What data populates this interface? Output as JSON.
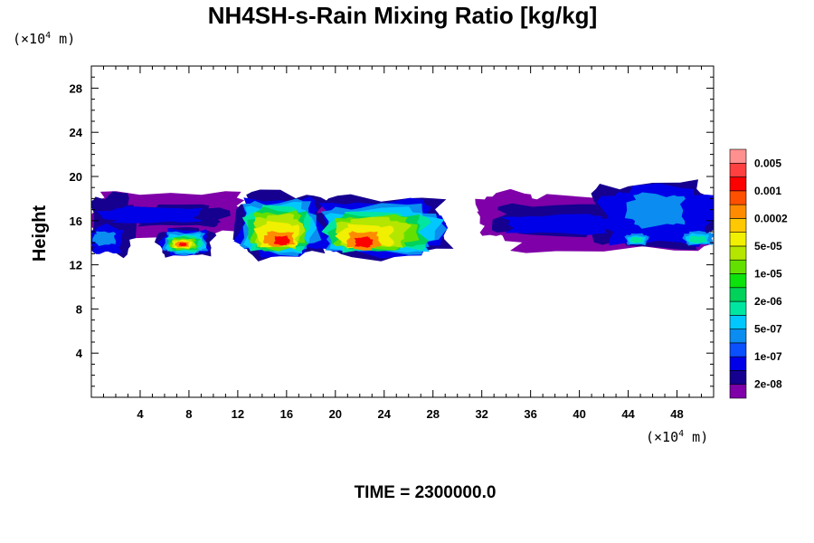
{
  "chart_data": {
    "type": "heatmap",
    "title": "NH4SH-s-Rain Mixing Ratio [kg/kg]",
    "ylabel": "Height",
    "y_unit": {
      "prefix": "(×10",
      "exp": "4",
      "suffix": " m)"
    },
    "x_unit": {
      "prefix": "(×10",
      "exp": "4",
      "suffix": " m)"
    },
    "xlim": [
      0,
      51
    ],
    "ylim": [
      0,
      30
    ],
    "x_ticks": [
      4,
      8,
      12,
      16,
      20,
      24,
      28,
      32,
      36,
      40,
      44,
      48
    ],
    "y_ticks": [
      4,
      8,
      12,
      16,
      20,
      24,
      28
    ],
    "time_label": "TIME = 2300000.0",
    "colorbar": {
      "colors": [
        "#7f00a8",
        "#16008f",
        "#0000e8",
        "#0a50ff",
        "#0a8cf0",
        "#00c8ff",
        "#00e6a0",
        "#00d25a",
        "#0ce20c",
        "#64e000",
        "#b4e600",
        "#f0f000",
        "#ffc800",
        "#ff8c00",
        "#ff5000",
        "#ff0000",
        "#ff4040",
        "#ff9090"
      ],
      "labels": [
        "2e-08",
        "1e-07",
        "5e-07",
        "2e-06",
        "1e-05",
        "5e-05",
        "0.0002",
        "0.001",
        "0.005"
      ]
    },
    "field_levels": [
      "purple",
      "navy",
      "blue",
      "lightblue",
      "cyan",
      "teal",
      "green",
      "lime",
      "yellowgreen",
      "yellow",
      "orange",
      "red"
    ],
    "layers": [
      {
        "level": 0,
        "color": "#7f00a8",
        "blobs": [
          {
            "x": [
              0,
              13
            ],
            "y": [
              14.6,
              18.6
            ]
          },
          {
            "x": [
              14,
              27.5
            ],
            "y": [
              14.6,
              17.6
            ]
          },
          {
            "x": [
              28,
              29
            ],
            "y": [
              15.2,
              16.0
            ]
          },
          {
            "x": [
              31.7,
              37
            ],
            "y": [
              14.6,
              18.5
            ]
          },
          {
            "x": [
              33,
              51
            ],
            "y": [
              13.2,
              18.0
            ]
          }
        ]
      },
      {
        "level": 1,
        "color": "#16008f",
        "blobs": [
          {
            "x": [
              0,
              3.5
            ],
            "y": [
              13.0,
              18.4
            ]
          },
          {
            "x": [
              3.5,
              11
            ],
            "y": [
              15.5,
              17.4
            ]
          },
          {
            "x": [
              5.5,
              10
            ],
            "y": [
              12.8,
              15.3
            ]
          },
          {
            "x": [
              12,
              19
            ],
            "y": [
              12.8,
              18.6
            ]
          },
          {
            "x": [
              18.5,
              29
            ],
            "y": [
              12.8,
              18.2
            ]
          },
          {
            "x": [
              33,
              43
            ],
            "y": [
              14.7,
              17.5
            ]
          },
          {
            "x": [
              41,
              51
            ],
            "y": [
              13.6,
              19.4
            ]
          }
        ]
      },
      {
        "level": 2,
        "color": "#0000e8",
        "blobs": [
          {
            "x": [
              0,
              2.5
            ],
            "y": [
              13.0,
              15.5
            ]
          },
          {
            "x": [
              1,
              9
            ],
            "y": [
              15.8,
              17.2
            ]
          },
          {
            "x": [
              5.8,
              9.6
            ],
            "y": [
              12.9,
              15.2
            ]
          },
          {
            "x": [
              12.2,
              18.8
            ],
            "y": [
              12.9,
              18.0
            ]
          },
          {
            "x": [
              18.8,
              28.6
            ],
            "y": [
              12.9,
              17.8
            ]
          },
          {
            "x": [
              34,
              43
            ],
            "y": [
              14.8,
              16.5
            ]
          },
          {
            "x": [
              42,
              51
            ],
            "y": [
              13.8,
              19.0
            ]
          }
        ]
      },
      {
        "level": 3,
        "color": "#0a8cf0",
        "blobs": [
          {
            "x": [
              0.2,
              2
            ],
            "y": [
              13.8,
              15.0
            ]
          },
          {
            "x": [
              6,
              9.4
            ],
            "y": [
              13.0,
              15.0
            ]
          },
          {
            "x": [
              12.4,
              18.4
            ],
            "y": [
              13.1,
              17.8
            ]
          },
          {
            "x": [
              19.2,
              28.4
            ],
            "y": [
              13.1,
              17.4
            ]
          },
          {
            "x": [
              43.8,
              45.6
            ],
            "y": [
              13.8,
              14.8
            ]
          },
          {
            "x": [
              48.6,
              51
            ],
            "y": [
              13.8,
              15.0
            ]
          },
          {
            "x": [
              44,
              48.6
            ],
            "y": [
              15.5,
              18.4
            ]
          }
        ]
      },
      {
        "level": 4,
        "color": "#00c8ff",
        "blobs": [
          {
            "x": [
              6.2,
              9.2
            ],
            "y": [
              13.1,
              14.8
            ]
          },
          {
            "x": [
              12.6,
              18
            ],
            "y": [
              13.2,
              17.5
            ]
          },
          {
            "x": [
              19.4,
              28.2
            ],
            "y": [
              13.2,
              17.0
            ]
          },
          {
            "x": [
              44,
              45.4
            ],
            "y": [
              13.9,
              14.6
            ]
          },
          {
            "x": [
              48.8,
              50.6
            ],
            "y": [
              13.9,
              14.8
            ]
          }
        ]
      },
      {
        "level": 5,
        "color": "#00e6a0",
        "blobs": [
          {
            "x": [
              6.3,
              9
            ],
            "y": [
              13.2,
              14.6
            ]
          },
          {
            "x": [
              12.8,
              17.8
            ],
            "y": [
              13.3,
              17.2
            ]
          },
          {
            "x": [
              19.6,
              27.6
            ],
            "y": [
              13.3,
              16.7
            ]
          },
          {
            "x": [
              44.2,
              45.2
            ],
            "y": [
              14.0,
              14.5
            ]
          },
          {
            "x": [
              49,
              50.4
            ],
            "y": [
              14.0,
              14.6
            ]
          }
        ]
      },
      {
        "level": 6,
        "color": "#00d25a",
        "blobs": [
          {
            "x": [
              6.4,
              8.8
            ],
            "y": [
              13.3,
              14.5
            ]
          },
          {
            "x": [
              13,
              17.6
            ],
            "y": [
              13.4,
              17.0
            ]
          },
          {
            "x": [
              19.8,
              27.2
            ],
            "y": [
              13.4,
              16.5
            ]
          }
        ]
      },
      {
        "level": 7,
        "color": "#64e000",
        "blobs": [
          {
            "x": [
              6.5,
              8.6
            ],
            "y": [
              13.4,
              14.4
            ]
          },
          {
            "x": [
              13.2,
              17.4
            ],
            "y": [
              13.5,
              16.8
            ]
          },
          {
            "x": [
              20,
              26.5
            ],
            "y": [
              13.5,
              16.4
            ]
          }
        ]
      },
      {
        "level": 8,
        "color": "#b4e600",
        "blobs": [
          {
            "x": [
              6.6,
              8.4
            ],
            "y": [
              13.5,
              14.3
            ]
          },
          {
            "x": [
              13.4,
              17.2
            ],
            "y": [
              13.6,
              16.5
            ]
          },
          {
            "x": [
              20.2,
              25.8
            ],
            "y": [
              13.6,
              16.2
            ]
          }
        ]
      },
      {
        "level": 9,
        "color": "#f0f000",
        "blobs": [
          {
            "x": [
              6.7,
              8.2
            ],
            "y": [
              13.5,
              14.2
            ]
          },
          {
            "x": [
              13.6,
              17
            ],
            "y": [
              13.6,
              15.8
            ]
          },
          {
            "x": [
              20.4,
              24.8
            ],
            "y": [
              13.6,
              15.6
            ]
          }
        ]
      },
      {
        "level": 10,
        "color": "#ff8c00",
        "blobs": [
          {
            "x": [
              6.9,
              8
            ],
            "y": [
              13.6,
              14.1
            ]
          },
          {
            "x": [
              14.2,
              16.6
            ],
            "y": [
              13.7,
              15.0
            ]
          },
          {
            "x": [
              21,
              23.6
            ],
            "y": [
              13.4,
              15.0
            ]
          }
        ]
      },
      {
        "level": 11,
        "color": "#ff0000",
        "blobs": [
          {
            "x": [
              7.2,
              7.8
            ],
            "y": [
              13.7,
              14.0
            ]
          },
          {
            "x": [
              15,
              16.2
            ],
            "y": [
              13.8,
              14.6
            ]
          },
          {
            "x": [
              21.6,
              23
            ],
            "y": [
              13.6,
              14.5
            ]
          }
        ]
      }
    ]
  }
}
